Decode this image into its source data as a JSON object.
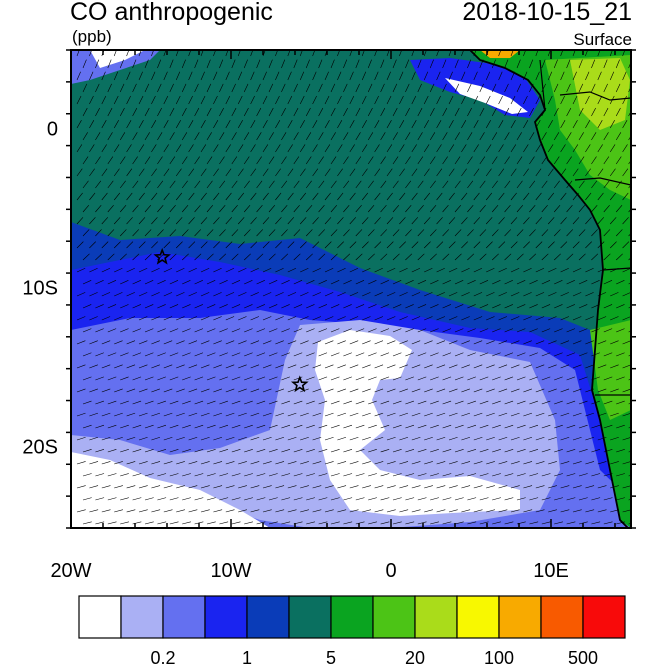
{
  "header": {
    "title": "CO anthropogenic",
    "units": "(ppb)",
    "timestamp": "2018-10-15_21",
    "level": "Surface"
  },
  "map": {
    "lon_range": [
      -20,
      15
    ],
    "lat_range": [
      -25,
      5
    ],
    "lon_ticks": [
      {
        "lon": -20,
        "label": "20W"
      },
      {
        "lon": -10,
        "label": "10W"
      },
      {
        "lon": 0,
        "label": "0"
      },
      {
        "lon": 10,
        "label": "10E"
      }
    ],
    "lat_ticks": [
      {
        "lat": 0,
        "label": "0"
      },
      {
        "lat": -10,
        "label": "10S"
      },
      {
        "lat": -20,
        "label": "20S"
      }
    ],
    "markers": [
      {
        "name": "star-marker-1",
        "lon": -14.3,
        "lat": -8.0
      },
      {
        "name": "star-marker-2",
        "lon": -5.7,
        "lat": -16.0
      }
    ],
    "wind_barbs": "wind barbs over domain"
  },
  "colorbar": {
    "colors": [
      "#ffffff",
      "#aab0f4",
      "#6470f0",
      "#1a24f0",
      "#0a3cb8",
      "#0a7060",
      "#0aa420",
      "#4cc416",
      "#aadc1a",
      "#f8f800",
      "#f8aa00",
      "#f85a00",
      "#f80a0a"
    ],
    "labels": [
      {
        "boundary": 2,
        "text": "0.2"
      },
      {
        "boundary": 4,
        "text": "1"
      },
      {
        "boundary": 6,
        "text": "5"
      },
      {
        "boundary": 8,
        "text": "20"
      },
      {
        "boundary": 10,
        "text": "100"
      },
      {
        "boundary": 12,
        "text": "500"
      }
    ]
  }
}
